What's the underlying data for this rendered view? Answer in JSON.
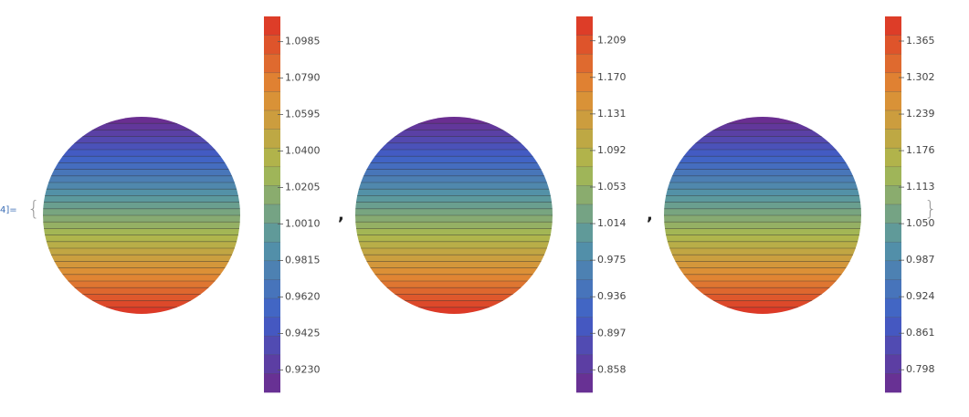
{
  "prompt": "4]=",
  "brackets": [
    "{",
    ",",
    ",",
    "}"
  ],
  "chart_data": [
    {
      "type": "contour",
      "colormap": [
        "#6e2a8c",
        "#3f5fc8",
        "#5596a4",
        "#aab94e",
        "#e08c34",
        "#dc3226"
      ],
      "ylim": [
        0.911,
        1.112
      ],
      "yticks": [
        {
          "value": 0.923,
          "label": "0.9230"
        },
        0.9425,
        {
          "value": 0.962,
          "label": "0.9620"
        },
        0.9815,
        {
          "value": 1.001,
          "label": "1.0010"
        },
        1.0205,
        {
          "value": 1.04,
          "label": "1.0400"
        },
        1.0595,
        {
          "value": 1.079,
          "label": "1.0790"
        },
        1.0985
      ]
    },
    {
      "type": "contour",
      "colormap": [
        "#6e2a8c",
        "#3f5fc8",
        "#5596a4",
        "#aab94e",
        "#e08c34",
        "#dc3226"
      ],
      "ylim": [
        0.834,
        1.235
      ],
      "yticks": [
        0.858,
        0.897,
        0.936,
        0.975,
        1.014,
        1.053,
        1.092,
        1.131,
        {
          "value": 1.17,
          "label": "1.170"
        },
        1.209
      ]
    },
    {
      "type": "contour",
      "colormap": [
        "#6e2a8c",
        "#3f5fc8",
        "#5596a4",
        "#aab94e",
        "#e08c34",
        "#dc3226"
      ],
      "ylim": [
        0.759,
        1.4075
      ],
      "yticks": [
        0.798,
        0.861,
        0.924,
        0.987,
        {
          "value": 1.05,
          "label": "1.050"
        },
        1.113,
        1.176,
        1.239,
        1.302,
        1.365
      ]
    }
  ]
}
